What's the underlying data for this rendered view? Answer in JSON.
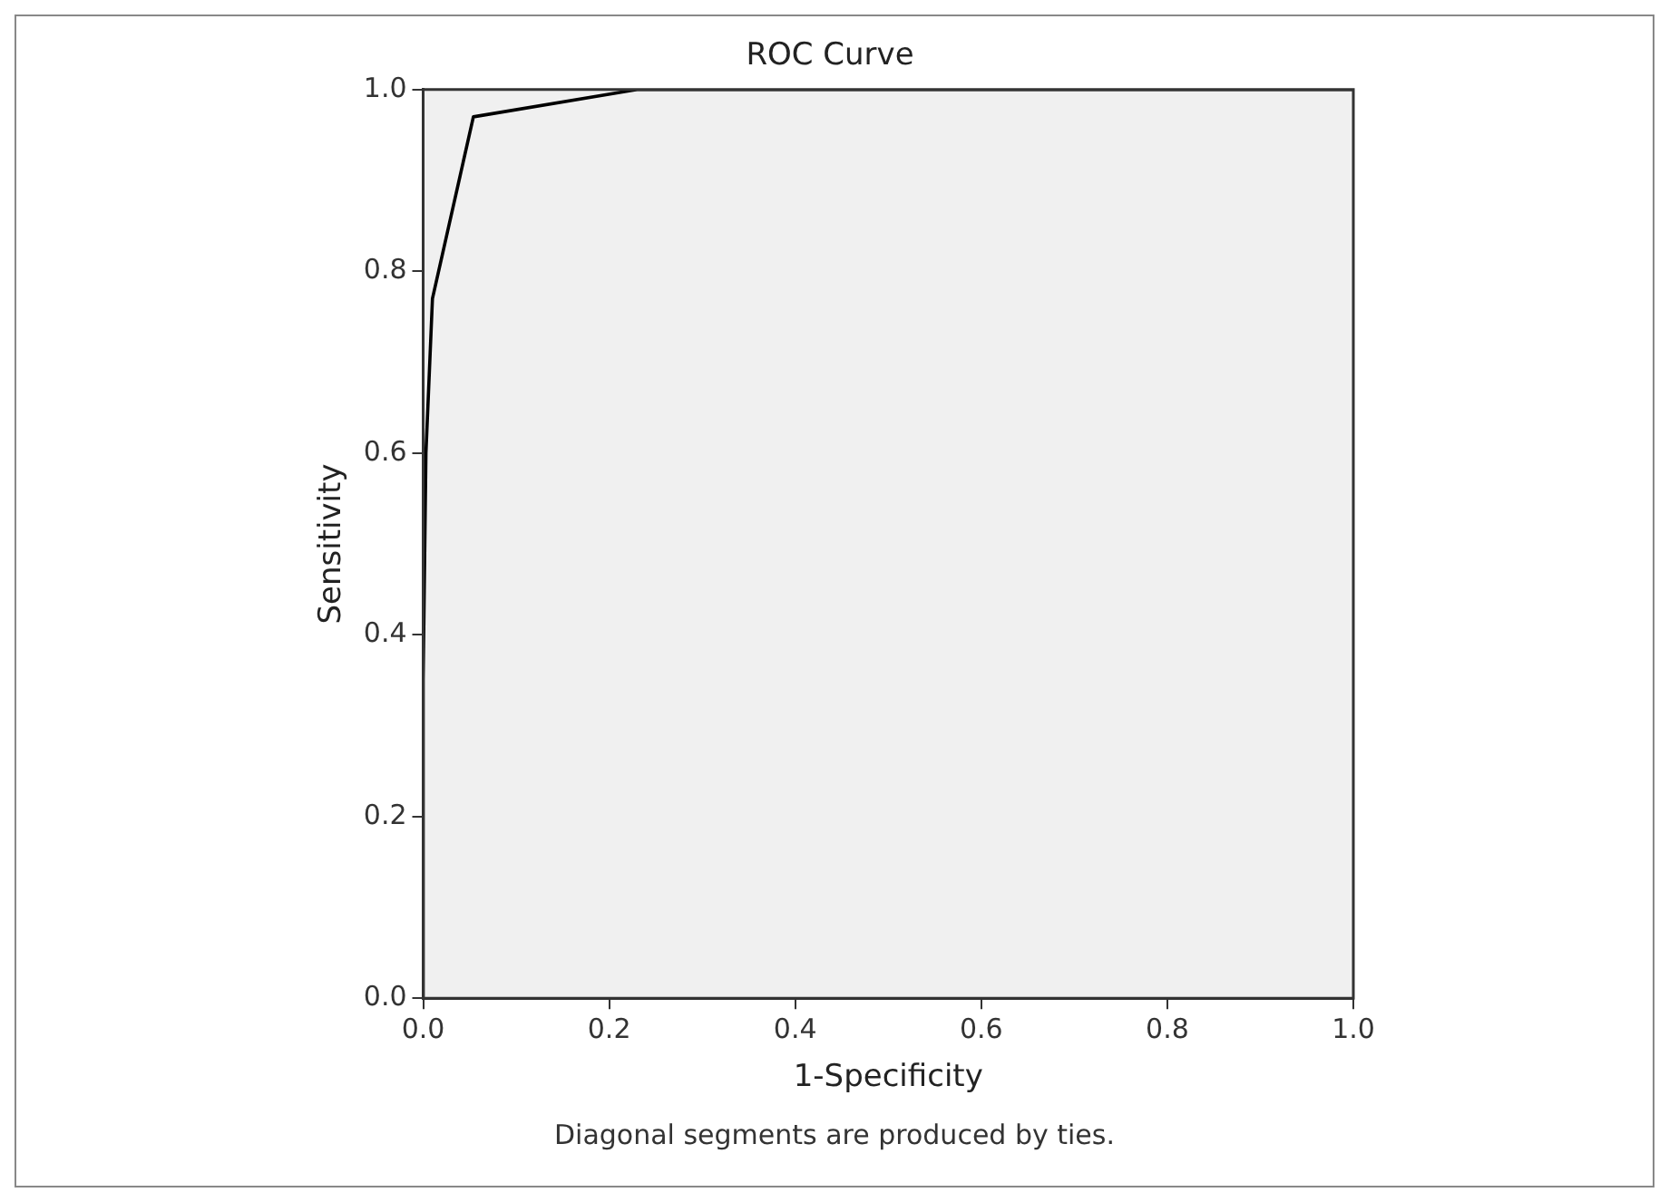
{
  "chart_data": {
    "type": "line",
    "title": "ROC Curve",
    "xlabel": "1-Specificity",
    "ylabel": "Sensitivity",
    "annotations": [
      "Diagonal segments are produced by ties."
    ],
    "x": [
      0,
      0,
      0.003,
      0.01,
      0.054,
      0.23,
      1
    ],
    "series": [
      {
        "color": "#000000",
        "values": [
          0,
          0.35,
          0.6,
          0.77,
          0.97,
          1,
          1
        ]
      }
    ],
    "xlim": [
      0,
      1
    ],
    "ylim": [
      0,
      1
    ],
    "xticks": [
      {
        "value": 0,
        "label": "0.0"
      },
      {
        "value": 0.2,
        "label": "0.2"
      },
      {
        "value": 0.4,
        "label": "0.4"
      },
      {
        "value": 0.6,
        "label": "0.6"
      },
      {
        "value": 0.8,
        "label": "0.8"
      },
      {
        "value": 1,
        "label": "1.0"
      }
    ],
    "yticks": [
      {
        "value": 0,
        "label": "0.0"
      },
      {
        "value": 0.2,
        "label": "0.2"
      },
      {
        "value": 0.4,
        "label": "0.4"
      },
      {
        "value": 0.6,
        "label": "0.6"
      },
      {
        "value": 0.8,
        "label": "0.8"
      },
      {
        "value": 1,
        "label": "1.0"
      }
    ],
    "grid": false,
    "legend": false,
    "marker": "none",
    "line_style": "solid"
  }
}
